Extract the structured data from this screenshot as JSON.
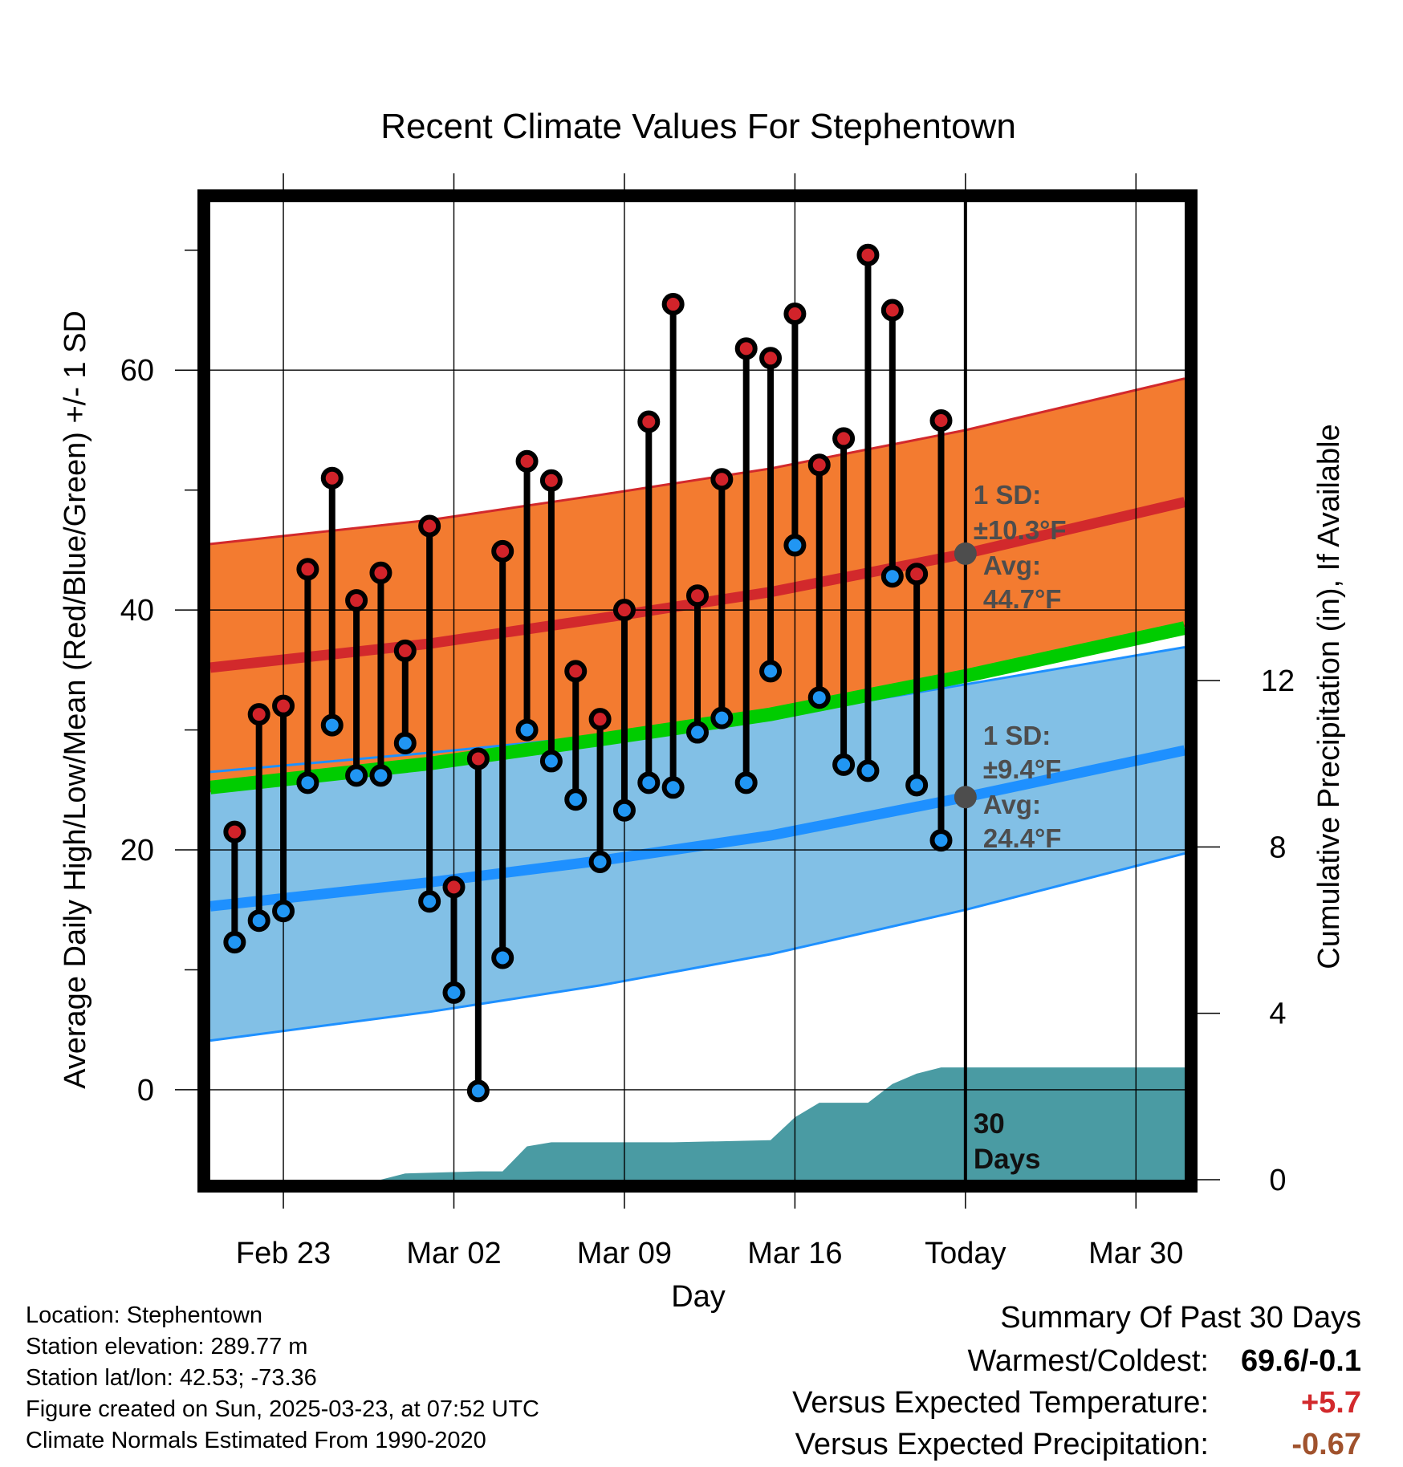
{
  "chart_data": {
    "type": "line",
    "title": "Recent Climate Values For Stephentown",
    "xlabel": "Day",
    "ylabel": "Average Daily High/Low/Mean (Red/Blue/Green) +/- 1 SD",
    "ylabel2": "Cumulative Precipitation (in), If Available",
    "x_range": [
      "2025-02-20",
      "2025-04-01"
    ],
    "ylim": [
      -7.5,
      74
    ],
    "ylim2": [
      0,
      23.5
    ],
    "yticks": [
      0,
      20,
      40,
      60
    ],
    "yticks2": [
      0,
      4,
      8,
      12
    ],
    "xticks": [
      {
        "date": "2025-02-23",
        "label": "Feb 23"
      },
      {
        "date": "2025-03-02",
        "label": "Mar 02"
      },
      {
        "date": "2025-03-09",
        "label": "Mar 09"
      },
      {
        "date": "2025-03-16",
        "label": "Mar 16"
      },
      {
        "date": "2025-03-23",
        "label": "Today"
      },
      {
        "date": "2025-03-30",
        "label": "Mar 30"
      }
    ],
    "grid": true,
    "colors": {
      "high_band": "#f37b30",
      "high_mean": "#d2292c",
      "high_edge": "#d2292c",
      "low_band": "#82c0e6",
      "low_mean": "#1e90ff",
      "low_edge": "#1e90ff",
      "mean": "#00cc00",
      "precip": "#4a9ba3",
      "marker_high": "#d2232a",
      "marker_low": "#2196f3",
      "avg_marker": "#4d4d4d"
    },
    "normals": {
      "dates": [
        "2025-02-20",
        "2025-03-01",
        "2025-03-08",
        "2025-03-15",
        "2025-03-23",
        "2025-04-01"
      ],
      "high_mean": [
        35.2,
        37.2,
        39.3,
        41.5,
        44.7,
        49.0
      ],
      "high_sd": [
        10.3,
        10.3,
        10.3,
        10.3,
        10.3,
        10.3
      ],
      "low_mean": [
        15.3,
        17.3,
        19.1,
        21.2,
        24.4,
        28.3
      ],
      "low_sd": [
        11.2,
        10.8,
        10.4,
        9.9,
        9.4,
        8.6
      ],
      "mean": [
        25.2,
        27.2,
        29.2,
        31.3,
        34.5,
        38.5
      ]
    },
    "observations": [
      {
        "date": "2025-02-21",
        "high": 21.5,
        "low": 12.3
      },
      {
        "date": "2025-02-22",
        "high": 31.3,
        "low": 14.1
      },
      {
        "date": "2025-02-23",
        "high": 32.0,
        "low": 14.9
      },
      {
        "date": "2025-02-24",
        "high": 43.4,
        "low": 25.6
      },
      {
        "date": "2025-02-25",
        "high": 51.0,
        "low": 30.4
      },
      {
        "date": "2025-02-26",
        "high": 40.8,
        "low": 26.2
      },
      {
        "date": "2025-02-27",
        "high": 43.1,
        "low": 26.2
      },
      {
        "date": "2025-02-28",
        "high": 36.6,
        "low": 28.9
      },
      {
        "date": "2025-03-01",
        "high": 47.0,
        "low": 15.7
      },
      {
        "date": "2025-03-02",
        "high": 16.9,
        "low": 8.1
      },
      {
        "date": "2025-03-03",
        "high": 27.6,
        "low": -0.1
      },
      {
        "date": "2025-03-04",
        "high": 44.9,
        "low": 11.0
      },
      {
        "date": "2025-03-05",
        "high": 52.4,
        "low": 30.0
      },
      {
        "date": "2025-03-06",
        "high": 50.8,
        "low": 27.4
      },
      {
        "date": "2025-03-07",
        "high": 34.9,
        "low": 24.2
      },
      {
        "date": "2025-03-08",
        "high": 30.9,
        "low": 19.0
      },
      {
        "date": "2025-03-09",
        "high": 40.0,
        "low": 23.3
      },
      {
        "date": "2025-03-10",
        "high": 55.7,
        "low": 25.6
      },
      {
        "date": "2025-03-11",
        "high": 65.5,
        "low": 25.2
      },
      {
        "date": "2025-03-12",
        "high": 41.2,
        "low": 29.8
      },
      {
        "date": "2025-03-13",
        "high": 50.9,
        "low": 31.0
      },
      {
        "date": "2025-03-14",
        "high": 61.8,
        "low": 25.6
      },
      {
        "date": "2025-03-15",
        "high": 61.0,
        "low": 34.9
      },
      {
        "date": "2025-03-16",
        "high": 64.7,
        "low": 45.4
      },
      {
        "date": "2025-03-17",
        "high": 52.1,
        "low": 32.7
      },
      {
        "date": "2025-03-18",
        "high": 54.3,
        "low": 27.1
      },
      {
        "date": "2025-03-19",
        "high": 69.6,
        "low": 26.6
      },
      {
        "date": "2025-03-20",
        "high": 65.0,
        "low": 42.8
      },
      {
        "date": "2025-03-21",
        "high": 43.0,
        "low": 25.4
      },
      {
        "date": "2025-03-22",
        "high": 55.8,
        "low": 20.8
      }
    ],
    "cumulative_precip": [
      {
        "date": "2025-02-20",
        "value": 0
      },
      {
        "date": "2025-02-27",
        "value": 0
      },
      {
        "date": "2025-02-28",
        "value": 0.15
      },
      {
        "date": "2025-03-03",
        "value": 0.2
      },
      {
        "date": "2025-03-04",
        "value": 0.2
      },
      {
        "date": "2025-03-05",
        "value": 0.8
      },
      {
        "date": "2025-03-06",
        "value": 0.9
      },
      {
        "date": "2025-03-11",
        "value": 0.9
      },
      {
        "date": "2025-03-15",
        "value": 0.95
      },
      {
        "date": "2025-03-16",
        "value": 1.5
      },
      {
        "date": "2025-03-17",
        "value": 1.85
      },
      {
        "date": "2025-03-19",
        "value": 1.85
      },
      {
        "date": "2025-03-20",
        "value": 2.3
      },
      {
        "date": "2025-03-21",
        "value": 2.55
      },
      {
        "date": "2025-03-22",
        "value": 2.7
      },
      {
        "date": "2025-04-01",
        "value": 2.7
      }
    ],
    "annotations": {
      "high": {
        "sd_label": "1 SD:",
        "sd_value": "±10.3°F",
        "avg_label": "Avg:",
        "avg_value": "44.7°F"
      },
      "low": {
        "sd_label": "1 SD:",
        "sd_value": "±9.4°F",
        "avg_label": "Avg:",
        "avg_value": "24.4°F"
      },
      "today_date": "2025-03-23",
      "window_text_1": "30",
      "window_text_2": "Days"
    }
  },
  "footer": {
    "location": "Location: Stephentown",
    "elevation": "Station elevation: 289.77 m",
    "latlon": "Station lat/lon: 42.53; -73.36",
    "created": "Figure created on Sun, 2025-03-23, at 07:52 UTC",
    "normals": "Climate Normals Estimated From 1990-2020"
  },
  "summary": {
    "heading": "Summary Of Past 30 Days",
    "warmest_label": "Warmest/Coldest:",
    "warmest_value": "69.6/-0.1",
    "temp_label": "Versus Expected Temperature:",
    "temp_value": "+5.7",
    "temp_color": "#d2292c",
    "precip_label": "Versus Expected Precipitation:",
    "precip_value": "-0.67",
    "precip_color": "#a0522d"
  }
}
